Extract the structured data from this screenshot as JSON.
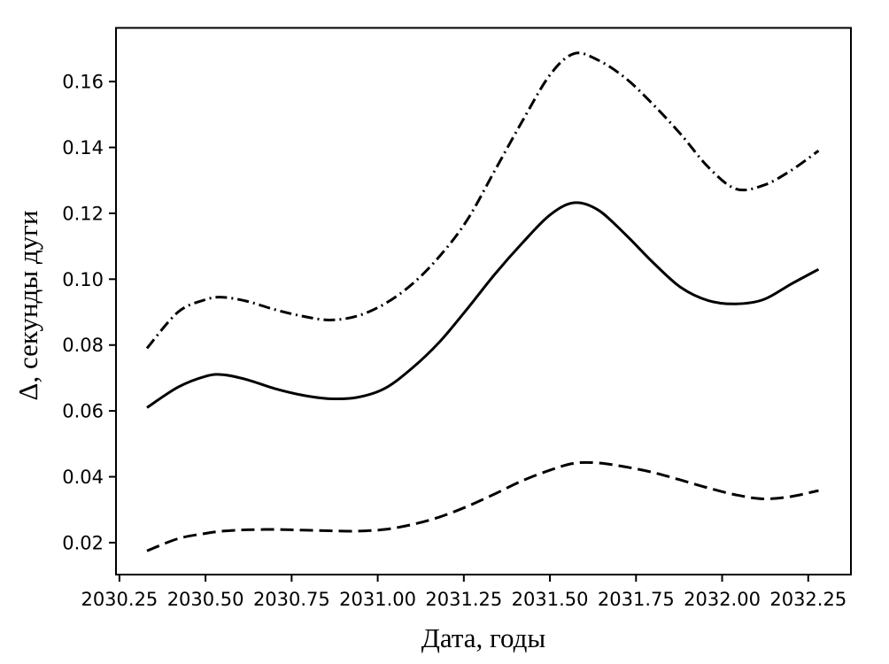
{
  "figure": {
    "background": "#ffffff",
    "foreground": "#000000"
  },
  "chart_data": {
    "type": "line",
    "title": "",
    "xlabel": "Дата, годы",
    "ylabel": "Δ, секунды дуги",
    "grid": false,
    "legend": "none",
    "xlim": [
      2030.24,
      2032.374
    ],
    "ylim": [
      0.0103,
      0.1763
    ],
    "x_ticks": [
      2030.25,
      2030.5,
      2030.75,
      2031.0,
      2031.25,
      2031.5,
      2031.75,
      2032.0,
      2032.25
    ],
    "x_tick_labels": [
      "2030.25",
      "2030.50",
      "2030.75",
      "2031.00",
      "2031.25",
      "2031.50",
      "2031.75",
      "2032.00",
      "2032.25"
    ],
    "y_ticks": [
      0.02,
      0.04,
      0.06,
      0.08,
      0.1,
      0.12,
      0.14,
      0.16
    ],
    "y_tick_labels": [
      "0.02",
      "0.04",
      "0.06",
      "0.08",
      "0.10",
      "0.12",
      "0.14",
      "0.16"
    ],
    "x": [
      2030.33,
      2030.42,
      2030.5,
      2030.55,
      2030.62,
      2030.7,
      2030.78,
      2030.86,
      2030.94,
      2031.02,
      2031.1,
      2031.18,
      2031.26,
      2031.34,
      2031.42,
      2031.5,
      2031.57,
      2031.64,
      2031.72,
      2031.8,
      2031.88,
      2031.96,
      2032.04,
      2032.12,
      2032.2,
      2032.28
    ],
    "series": [
      {
        "name": "upper-dashdot",
        "linestyle": "dashdot",
        "color": "#000000",
        "values": [
          0.079,
          0.09,
          0.0938,
          0.0945,
          0.0933,
          0.0908,
          0.0888,
          0.0876,
          0.0888,
          0.0925,
          0.0985,
          0.107,
          0.118,
          0.133,
          0.148,
          0.162,
          0.1685,
          0.1665,
          0.161,
          0.153,
          0.144,
          0.134,
          0.1274,
          0.1285,
          0.133,
          0.139
        ]
      },
      {
        "name": "middle-solid",
        "linestyle": "solid",
        "color": "#000000",
        "values": [
          0.061,
          0.0672,
          0.0705,
          0.071,
          0.0695,
          0.0668,
          0.0648,
          0.0637,
          0.0641,
          0.0668,
          0.073,
          0.081,
          0.091,
          0.1015,
          0.111,
          0.1195,
          0.1232,
          0.121,
          0.1135,
          0.105,
          0.0975,
          0.0935,
          0.0925,
          0.0938,
          0.0985,
          0.103
        ]
      },
      {
        "name": "lower-dashed",
        "linestyle": "dashed",
        "color": "#000000",
        "values": [
          0.0175,
          0.0212,
          0.0228,
          0.0235,
          0.0239,
          0.024,
          0.0238,
          0.0236,
          0.0235,
          0.024,
          0.0255,
          0.0278,
          0.031,
          0.0348,
          0.0388,
          0.042,
          0.0441,
          0.0442,
          0.043,
          0.0413,
          0.039,
          0.0366,
          0.0345,
          0.0333,
          0.034,
          0.0358
        ]
      }
    ]
  }
}
